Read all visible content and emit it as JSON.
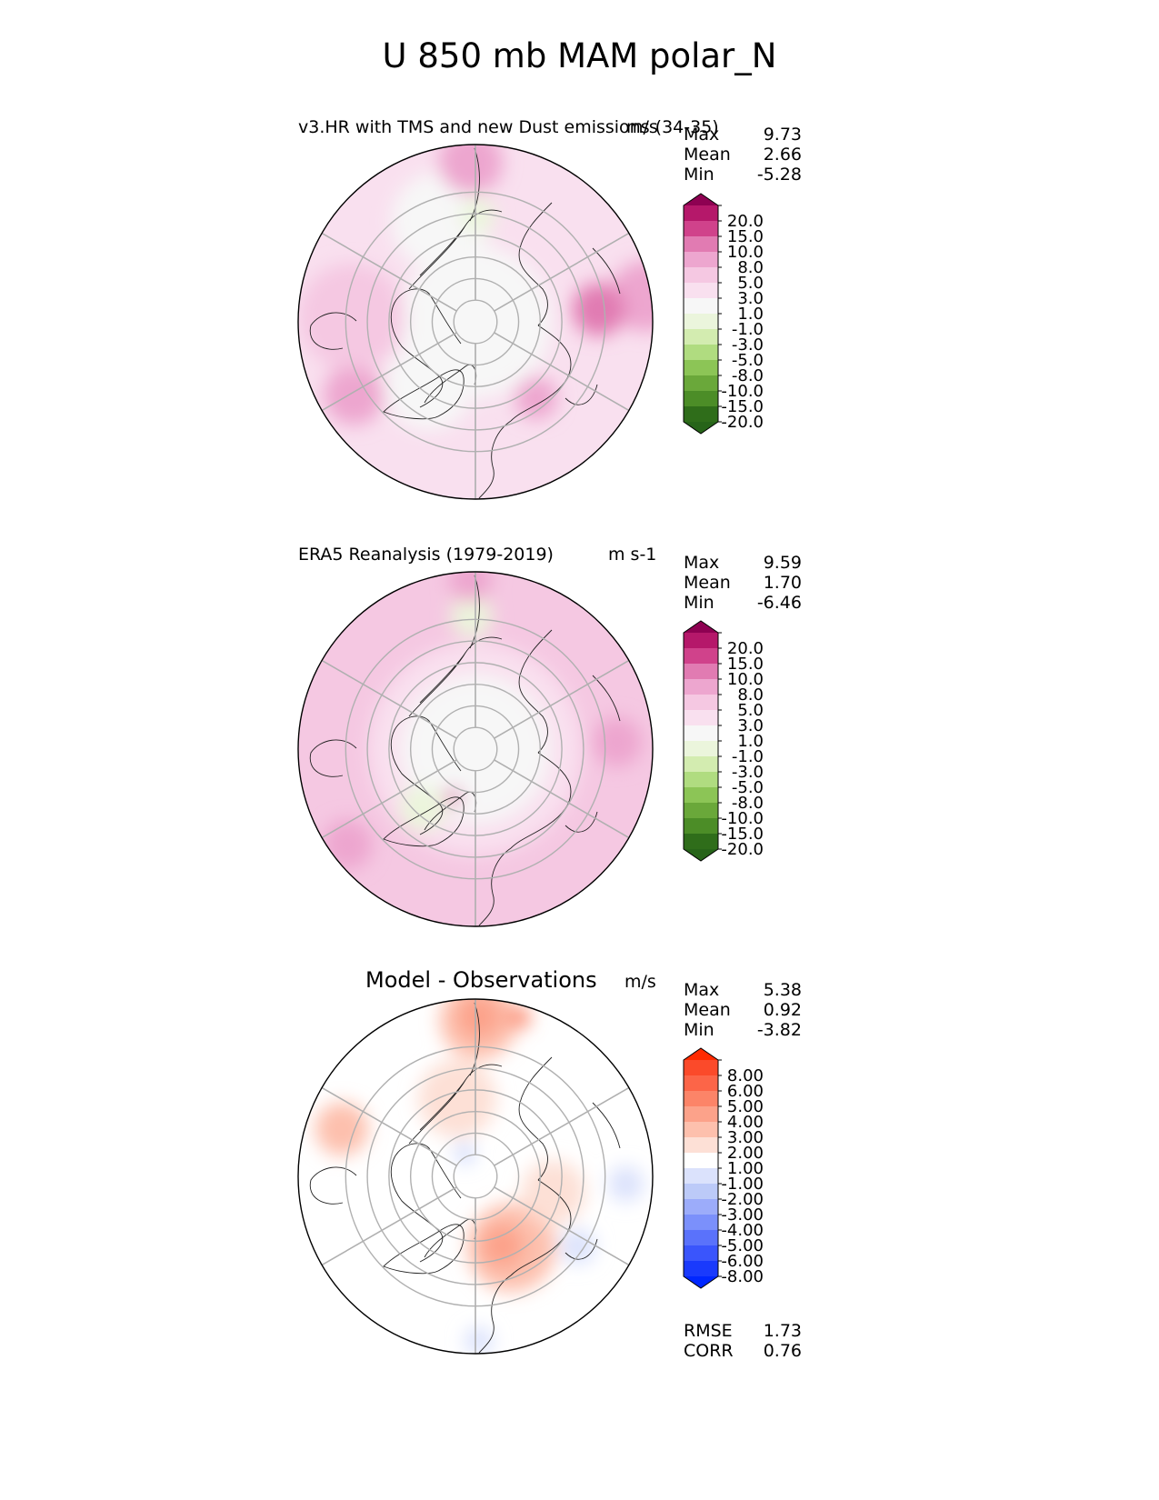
{
  "figure_title": "U 850 mb MAM polar_N",
  "panels": [
    {
      "title": "v3.HR with TMS and new Dust emissions (34-35)",
      "units": "m/s",
      "stats": [
        [
          "Max",
          "9.73"
        ],
        [
          "Mean",
          "2.66"
        ],
        [
          "Min",
          "-5.28"
        ]
      ],
      "colorbar": {
        "labels": [
          "20.0",
          "15.0",
          "10.0",
          "8.0",
          "5.0",
          "3.0",
          "1.0",
          "-1.0",
          "-3.0",
          "-5.0",
          "-8.0",
          "-10.0",
          "-15.0",
          "-20.0"
        ],
        "colors": [
          "#8e0152",
          "#b5186a",
          "#d0428b",
          "#e17bb2",
          "#eda6cf",
          "#f5c8e2",
          "#f9e0ef",
          "#f7f7f7",
          "#ebf5dc",
          "#d3ecb0",
          "#b0dc80",
          "#8cc556",
          "#6aa83a",
          "#4c8d27",
          "#2f6d1a",
          "#276419"
        ]
      },
      "field": {
        "base": "#f9e0ef",
        "blobs": [
          {
            "c": "#eda6cf",
            "a": 0.15,
            "r": 0.97,
            "s": 0.2
          },
          {
            "c": "#f7f7f7",
            "a": 0.0,
            "r": 0.0,
            "s": 0.43
          },
          {
            "c": "#f7f7f7",
            "a": 1.9,
            "r": 0.6,
            "s": 0.28
          },
          {
            "c": "#f7f7f7",
            "a": -2.2,
            "r": 0.45,
            "s": 0.25
          },
          {
            "c": "#ebf5dc",
            "a": 1.55,
            "r": 0.6,
            "s": 0.1
          },
          {
            "c": "#e17bb2",
            "a": 0.1,
            "r": 0.7,
            "s": 0.15
          },
          {
            "c": "#eda6cf",
            "a": 1.6,
            "r": 0.9,
            "s": 0.18
          },
          {
            "c": "#eda6cf",
            "a": -2.6,
            "r": 0.8,
            "s": 0.17
          },
          {
            "c": "#f5c8e2",
            "a": 3.1,
            "r": 0.7,
            "s": 0.3
          },
          {
            "c": "#eda6cf",
            "a": -0.9,
            "r": 0.55,
            "s": 0.12
          }
        ]
      }
    },
    {
      "title": "ERA5 Reanalysis (1979-2019)",
      "units": "m s-1",
      "stats": [
        [
          "Max",
          "9.59"
        ],
        [
          "Mean",
          "1.70"
        ],
        [
          "Min",
          "-6.46"
        ]
      ],
      "colorbar": {
        "labels": [
          "20.0",
          "15.0",
          "10.0",
          "8.0",
          "5.0",
          "3.0",
          "1.0",
          "-1.0",
          "-3.0",
          "-5.0",
          "-8.0",
          "-10.0",
          "-15.0",
          "-20.0"
        ],
        "colors": [
          "#8e0152",
          "#b5186a",
          "#d0428b",
          "#e17bb2",
          "#eda6cf",
          "#f5c8e2",
          "#f9e0ef",
          "#f7f7f7",
          "#ebf5dc",
          "#d3ecb0",
          "#b0dc80",
          "#8cc556",
          "#6aa83a",
          "#4c8d27",
          "#2f6d1a",
          "#276419"
        ]
      },
      "field": {
        "base": "#f5c8e2",
        "blobs": [
          {
            "c": "#f9e0ef",
            "a": 0.0,
            "r": 0.0,
            "s": 0.6
          },
          {
            "c": "#f7f7f7",
            "a": 0.0,
            "r": 0.0,
            "s": 0.42
          },
          {
            "c": "#ebf5dc",
            "a": 1.6,
            "r": 0.75,
            "s": 0.12
          },
          {
            "c": "#ebf5dc",
            "a": -2.3,
            "r": 0.45,
            "s": 0.13
          },
          {
            "c": "#eda6cf",
            "a": 0.05,
            "r": 0.8,
            "s": 0.14
          },
          {
            "c": "#eda6cf",
            "a": 1.6,
            "r": 0.95,
            "s": 0.12
          },
          {
            "c": "#eda6cf",
            "a": -2.5,
            "r": 0.9,
            "s": 0.14
          },
          {
            "c": "#e17bb2",
            "a": -2.0,
            "r": 0.3,
            "s": 0.05
          }
        ]
      }
    },
    {
      "title": "Model - Observations",
      "units": "m/s",
      "stats": [
        [
          "Max",
          "5.38"
        ],
        [
          "Mean",
          "0.92"
        ],
        [
          "Min",
          "-3.82"
        ]
      ],
      "extra_stats": [
        [
          "RMSE",
          "1.73"
        ],
        [
          "CORR",
          "0.76"
        ]
      ],
      "colorbar": {
        "labels": [
          "8.00",
          "6.00",
          "5.00",
          "4.00",
          "3.00",
          "2.00",
          "1.00",
          "-1.00",
          "-2.00",
          "-3.00",
          "-4.00",
          "-5.00",
          "-6.00",
          "-8.00"
        ],
        "colors": [
          "#ff2a00",
          "#fb4a2a",
          "#fc6548",
          "#fc8468",
          "#fca28a",
          "#fdc0ad",
          "#fde0d6",
          "#ffffff",
          "#dbe2fc",
          "#bccaf8",
          "#9cacfa",
          "#7b90fb",
          "#5a72fb",
          "#3a55fc",
          "#1a3afc",
          "#0027ff"
        ]
      },
      "field": {
        "base": "#ffffff",
        "blobs": [
          {
            "c": "#fdc0ad",
            "a": 1.55,
            "r": 0.88,
            "s": 0.22
          },
          {
            "c": "#fca28a",
            "a": 1.55,
            "r": 0.9,
            "s": 0.12
          },
          {
            "c": "#fc8468",
            "a": 1.3,
            "r": 0.93,
            "s": 0.06
          },
          {
            "c": "#fde0d6",
            "a": 1.8,
            "r": 0.45,
            "s": 0.22
          },
          {
            "c": "#fdc0ad",
            "a": 2.8,
            "r": 0.8,
            "s": 0.15
          },
          {
            "c": "#fdc0ad",
            "a": -1.1,
            "r": 0.45,
            "s": 0.25
          },
          {
            "c": "#fca28a",
            "a": -1.2,
            "r": 0.42,
            "s": 0.12
          },
          {
            "c": "#fde0d6",
            "a": -0.2,
            "r": 0.45,
            "s": 0.18
          },
          {
            "c": "#dbe2fc",
            "a": -0.05,
            "r": 0.85,
            "s": 0.1
          },
          {
            "c": "#dbe2fc",
            "a": -0.6,
            "r": 0.7,
            "s": 0.1
          },
          {
            "c": "#dbe2fc",
            "a": -1.55,
            "r": 0.93,
            "s": 0.08
          },
          {
            "c": "#dbe2fc",
            "a": 2.0,
            "r": 0.15,
            "s": 0.06
          },
          {
            "c": "#bccaf8",
            "a": 2.0,
            "r": 0.12,
            "s": 0.03
          }
        ]
      }
    }
  ]
}
